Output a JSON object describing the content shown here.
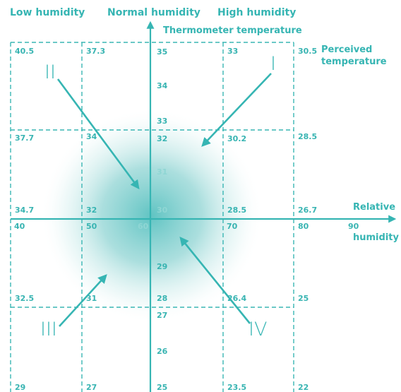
{
  "headers": {
    "low": "Low humidity",
    "normal": "Normal humidity",
    "high": "High humidity"
  },
  "axes": {
    "y_title": "Thermometer temperature",
    "x_title_1": "Relative",
    "x_title_2": "humidity",
    "perceived_1": "Perceived",
    "perceived_2": "temperature"
  },
  "humidity_ticks": [
    "40",
    "50",
    "60",
    "70",
    "80",
    "90"
  ],
  "thermometer_ticks": [
    "35",
    "34",
    "33",
    "32",
    "31",
    "30",
    "29",
    "28",
    "27",
    "26",
    "25"
  ],
  "perceived": {
    "r1": [
      "40.5",
      "37.3",
      "33",
      "30.5"
    ],
    "r2": [
      "37.7",
      "34",
      "30.2",
      "28.5"
    ],
    "r3": [
      "34.7",
      "32",
      "28.5",
      "26.7"
    ],
    "r4": [
      "32.5",
      "31",
      "26.4",
      "25"
    ],
    "r5": [
      "29",
      "27",
      "23.5",
      "22"
    ]
  },
  "zones": [
    "I",
    "II",
    "III",
    "IV"
  ],
  "colors": {
    "teal": "#36b5b3",
    "glow": "#7fcdcc"
  }
}
